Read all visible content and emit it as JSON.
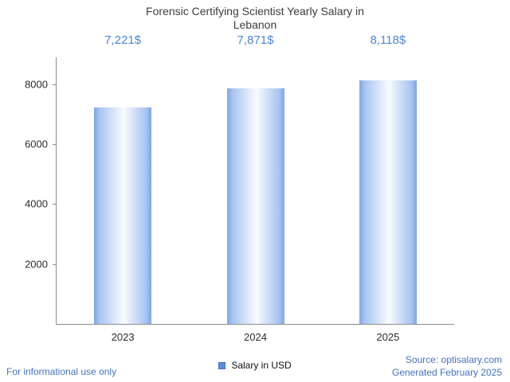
{
  "title": "Forensic Certifying Scientist Yearly Salary in Lebanon",
  "legend": {
    "label": "Salary in USD",
    "swatch_color": "#5b8dd9"
  },
  "footer": {
    "left_note": "For informational use only",
    "source": "Source: optisalary.com",
    "generated": "Generated February 2025"
  },
  "chart_data": {
    "type": "bar",
    "title": "Forensic Certifying Scientist Yearly Salary in Lebanon",
    "categories": [
      "2023",
      "2024",
      "2025"
    ],
    "values": [
      7221,
      7871,
      8118
    ],
    "value_labels": [
      "7,221$",
      "7,871$",
      "8,118$"
    ],
    "xlabel": "",
    "ylabel": "",
    "ylim": [
      0,
      8900
    ],
    "yticks": [
      2000,
      4000,
      6000,
      8000
    ],
    "grid": false,
    "legend_entries": [
      "Salary in USD"
    ],
    "legend_position": "bottom",
    "colors": {
      "bar_edge": "#7fa6e6",
      "bar_center": "#f8fbff",
      "value_label": "#4c87d9",
      "axis": "#8c8c8c",
      "footer_link": "#4472c4"
    }
  }
}
